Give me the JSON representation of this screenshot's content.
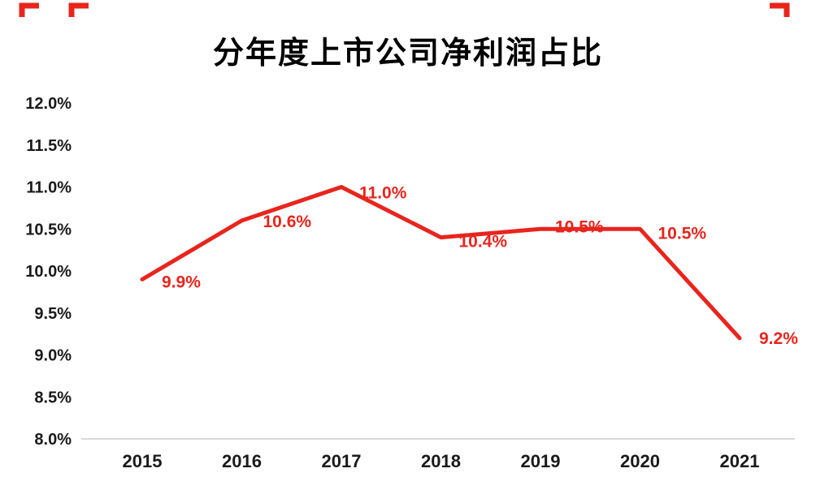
{
  "chart_data": {
    "type": "line",
    "title": "分年度上市公司净利润占比",
    "categories": [
      "2015",
      "2016",
      "2017",
      "2018",
      "2019",
      "2020",
      "2021"
    ],
    "values": [
      9.9,
      10.6,
      11.0,
      10.4,
      10.5,
      10.5,
      9.2
    ],
    "point_labels": [
      "9.9%",
      "10.6%",
      "11.0%",
      "10.4%",
      "10.5%",
      "10.5%",
      "9.2%"
    ],
    "xlabel": "",
    "ylabel": "",
    "ylim": [
      8.0,
      12.0
    ],
    "ytick_values": [
      12.0,
      11.5,
      11.0,
      10.5,
      10.0,
      9.5,
      9.0,
      8.5,
      8.0
    ],
    "ytick_labels": [
      "12.0%",
      "11.5%",
      "11.0%",
      "10.5%",
      "10.0%",
      "9.5%",
      "9.0%",
      "8.5%",
      "8.0%"
    ],
    "grid": false,
    "legend": "none",
    "colors": {
      "line": "#e8251d",
      "data_label": "#e8251d",
      "axis_line": "#d9d9d9",
      "tick_text": "#1a1a1a",
      "crop_mark": "#e8251d"
    }
  }
}
